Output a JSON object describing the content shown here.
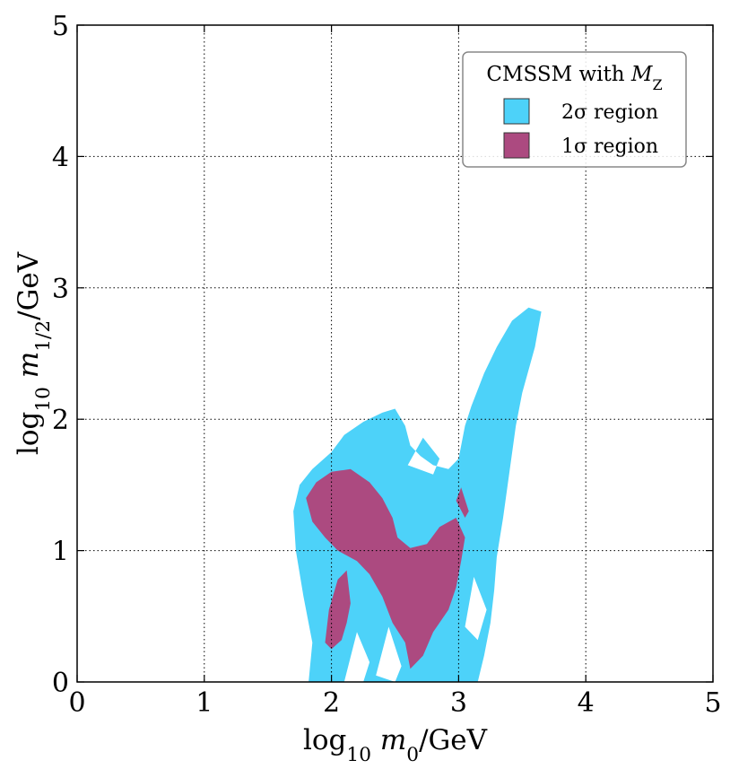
{
  "chart_data": {
    "type": "contour",
    "xlabel": "log10 m0/GeV",
    "ylabel": "log10 m1/2/GeV",
    "xlim": [
      0,
      5
    ],
    "ylim": [
      0,
      5
    ],
    "xticks": [
      "0",
      "1",
      "2",
      "3",
      "4",
      "5"
    ],
    "yticks": [
      "0",
      "1",
      "2",
      "3",
      "4",
      "5"
    ],
    "grid": true,
    "legend": {
      "title": "CMSSM with M_Z",
      "position": "top-right",
      "entries": [
        {
          "name": "2σ region",
          "color": "#4dd2f9"
        },
        {
          "name": "1σ region",
          "color": "#ac4a80"
        }
      ]
    },
    "regions": [
      {
        "name": "2σ region",
        "color": "#4dd2f9",
        "outline": [
          [
            1.82,
            0
          ],
          [
            1.85,
            0.3
          ],
          [
            1.78,
            0.65
          ],
          [
            1.72,
            1.0
          ],
          [
            1.7,
            1.3
          ],
          [
            1.75,
            1.5
          ],
          [
            1.85,
            1.62
          ],
          [
            2.0,
            1.75
          ],
          [
            2.1,
            1.88
          ],
          [
            2.25,
            1.98
          ],
          [
            2.4,
            2.05
          ],
          [
            2.5,
            2.08
          ],
          [
            2.58,
            1.95
          ],
          [
            2.62,
            1.8
          ],
          [
            2.7,
            1.72
          ],
          [
            2.8,
            1.65
          ],
          [
            2.92,
            1.62
          ],
          [
            3.0,
            1.7
          ],
          [
            3.05,
            1.95
          ],
          [
            3.1,
            2.1
          ],
          [
            3.2,
            2.35
          ],
          [
            3.3,
            2.55
          ],
          [
            3.42,
            2.75
          ],
          [
            3.55,
            2.85
          ],
          [
            3.65,
            2.82
          ],
          [
            3.6,
            2.55
          ],
          [
            3.5,
            2.2
          ],
          [
            3.45,
            1.95
          ],
          [
            3.4,
            1.6
          ],
          [
            3.35,
            1.25
          ],
          [
            3.3,
            0.95
          ],
          [
            3.28,
            0.7
          ],
          [
            3.25,
            0.45
          ],
          [
            3.2,
            0.2
          ],
          [
            3.15,
            0
          ]
        ],
        "holes": [
          [
            [
              2.35,
              0.05
            ],
            [
              2.45,
              0.42
            ],
            [
              2.55,
              0.12
            ],
            [
              2.5,
              0.0
            ]
          ],
          [
            [
              2.1,
              0.0
            ],
            [
              2.2,
              0.38
            ],
            [
              2.3,
              0.15
            ],
            [
              2.25,
              0.0
            ]
          ],
          [
            [
              2.6,
              1.65
            ],
            [
              2.72,
              1.86
            ],
            [
              2.85,
              1.7
            ],
            [
              2.8,
              1.58
            ]
          ],
          [
            [
              3.05,
              0.42
            ],
            [
              3.12,
              0.8
            ],
            [
              3.22,
              0.55
            ],
            [
              3.15,
              0.32
            ]
          ]
        ]
      },
      {
        "name": "1σ region",
        "color": "#ac4a80",
        "outline": [
          [
            1.8,
            1.4
          ],
          [
            1.88,
            1.52
          ],
          [
            2.0,
            1.6
          ],
          [
            2.15,
            1.62
          ],
          [
            2.3,
            1.52
          ],
          [
            2.4,
            1.4
          ],
          [
            2.48,
            1.25
          ],
          [
            2.52,
            1.1
          ],
          [
            2.62,
            1.02
          ],
          [
            2.75,
            1.05
          ],
          [
            2.85,
            1.18
          ],
          [
            2.98,
            1.25
          ],
          [
            3.05,
            1.1
          ],
          [
            3.02,
            0.92
          ],
          [
            2.98,
            0.72
          ],
          [
            2.92,
            0.55
          ],
          [
            2.8,
            0.38
          ],
          [
            2.72,
            0.2
          ],
          [
            2.62,
            0.1
          ],
          [
            2.58,
            0.3
          ],
          [
            2.48,
            0.45
          ],
          [
            2.4,
            0.65
          ],
          [
            2.3,
            0.82
          ],
          [
            2.2,
            0.92
          ],
          [
            2.05,
            1.0
          ],
          [
            1.95,
            1.1
          ],
          [
            1.85,
            1.22
          ]
        ]
      },
      {
        "name": "1σ region",
        "color": "#ac4a80",
        "outline": [
          [
            1.95,
            0.3
          ],
          [
            1.98,
            0.55
          ],
          [
            2.05,
            0.78
          ],
          [
            2.12,
            0.85
          ],
          [
            2.15,
            0.6
          ],
          [
            2.12,
            0.45
          ],
          [
            2.08,
            0.32
          ],
          [
            2.0,
            0.25
          ]
        ]
      },
      {
        "name": "1σ region",
        "color": "#ac4a80",
        "outline": [
          [
            2.98,
            1.38
          ],
          [
            3.02,
            1.48
          ],
          [
            3.08,
            1.3
          ],
          [
            3.05,
            1.25
          ]
        ]
      }
    ]
  }
}
